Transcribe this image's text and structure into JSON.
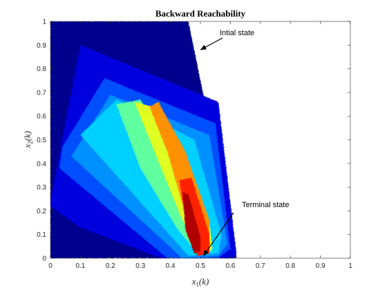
{
  "chart_data": {
    "type": "heatmap",
    "title": "Backward Reachability",
    "xlabel": "x",
    "xlabel_sub": "1",
    "xlabel_arg": "(k)",
    "ylabel": "x",
    "ylabel_sub": "2",
    "ylabel_arg": "(k)",
    "xlim": [
      0,
      1
    ],
    "ylim": [
      0,
      1
    ],
    "xticks": [
      "0",
      "0.1",
      "0.2",
      "0.3",
      "0.4",
      "0.5",
      "0.6",
      "0.7",
      "0.8",
      "0.9",
      "1"
    ],
    "yticks": [
      "0",
      "0.1",
      "0.2",
      "0.3",
      "0.4",
      "0.5",
      "0.6",
      "0.7",
      "0.8",
      "0.9",
      "1"
    ],
    "grid": false,
    "colormap": "jet",
    "annotations": [
      {
        "text": "Intial state",
        "point": [
          0.5,
          0.88
        ]
      },
      {
        "text": "Terminal state",
        "point": [
          0.51,
          0.01
        ]
      }
    ],
    "regions": [
      {
        "level": 1,
        "color": "#00008f",
        "polygon": [
          [
            0,
            1
          ],
          [
            0.46,
            1
          ],
          [
            0.62,
            0.01
          ],
          [
            0.62,
            0
          ],
          [
            0,
            0
          ]
        ]
      },
      {
        "level": 2,
        "color": "#0000df",
        "polygon": [
          [
            0.1,
            0.9
          ],
          [
            0.56,
            0.66
          ],
          [
            0.62,
            0.02
          ],
          [
            0.61,
            0
          ],
          [
            0.37,
            0
          ],
          [
            0.1,
            0.13
          ],
          [
            0,
            0.22
          ],
          [
            0,
            0.24
          ]
        ]
      },
      {
        "level": 3,
        "color": "#0050ff",
        "polygon": [
          [
            0.18,
            0.76
          ],
          [
            0.55,
            0.57
          ],
          [
            0.6,
            0.04
          ],
          [
            0.56,
            0
          ],
          [
            0.39,
            0
          ],
          [
            0.03,
            0.38
          ],
          [
            0.04,
            0.47
          ]
        ]
      },
      {
        "level": 4,
        "color": "#0090ff",
        "polygon": [
          [
            0.2,
            0.69
          ],
          [
            0.53,
            0.52
          ],
          [
            0.59,
            0.06
          ],
          [
            0.56,
            0.01
          ],
          [
            0.44,
            0
          ],
          [
            0.07,
            0.43
          ]
        ]
      },
      {
        "level": 5,
        "color": "#00d0ff",
        "polygon": [
          [
            0.22,
            0.67
          ],
          [
            0.48,
            0.5
          ],
          [
            0.57,
            0.1
          ],
          [
            0.56,
            0.02
          ],
          [
            0.46,
            0.01
          ],
          [
            0.1,
            0.52
          ]
        ]
      },
      {
        "level": 6,
        "color": "#5fffa0",
        "polygon": [
          [
            0.22,
            0.65
          ],
          [
            0.3,
            0.67
          ],
          [
            0.41,
            0.46
          ],
          [
            0.53,
            0.13
          ],
          [
            0.54,
            0.03
          ],
          [
            0.49,
            0.02
          ],
          [
            0.42,
            0.13
          ],
          [
            0.3,
            0.38
          ]
        ]
      },
      {
        "level": 7,
        "color": "#dfff20",
        "polygon": [
          [
            0.28,
            0.66
          ],
          [
            0.34,
            0.64
          ],
          [
            0.43,
            0.46
          ],
          [
            0.53,
            0.15
          ],
          [
            0.54,
            0.04
          ],
          [
            0.5,
            0.02
          ],
          [
            0.44,
            0.16
          ],
          [
            0.36,
            0.41
          ]
        ]
      },
      {
        "level": 8,
        "color": "#ff9000",
        "polygon": [
          [
            0.33,
            0.64
          ],
          [
            0.36,
            0.66
          ],
          [
            0.45,
            0.45
          ],
          [
            0.53,
            0.16
          ],
          [
            0.53,
            0.04
          ],
          [
            0.5,
            0.02
          ],
          [
            0.46,
            0.14
          ],
          [
            0.39,
            0.45
          ]
        ]
      },
      {
        "level": 9,
        "color": "#ff2000",
        "polygon": [
          [
            0.43,
            0.33
          ],
          [
            0.47,
            0.34
          ],
          [
            0.53,
            0.1
          ],
          [
            0.53,
            0.02
          ],
          [
            0.49,
            0.01
          ],
          [
            0.46,
            0.09
          ]
        ]
      },
      {
        "level": 10,
        "color": "#b00000",
        "polygon": [
          [
            0.44,
            0.28
          ],
          [
            0.46,
            0.27
          ],
          [
            0.5,
            0.09
          ],
          [
            0.5,
            0.03
          ],
          [
            0.48,
            0.02
          ],
          [
            0.45,
            0.12
          ]
        ]
      }
    ]
  }
}
